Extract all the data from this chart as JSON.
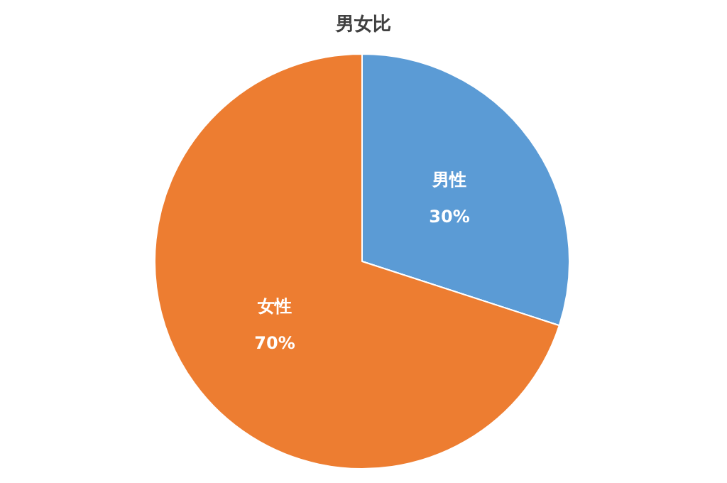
{
  "chart_data": {
    "type": "pie",
    "title": "男女比",
    "categories": [
      "男性",
      "女性"
    ],
    "values": [
      30,
      70
    ],
    "colors": [
      "#5b9bd5",
      "#ed7d31"
    ],
    "value_labels": [
      "30%",
      "70%"
    ],
    "legend": false
  }
}
